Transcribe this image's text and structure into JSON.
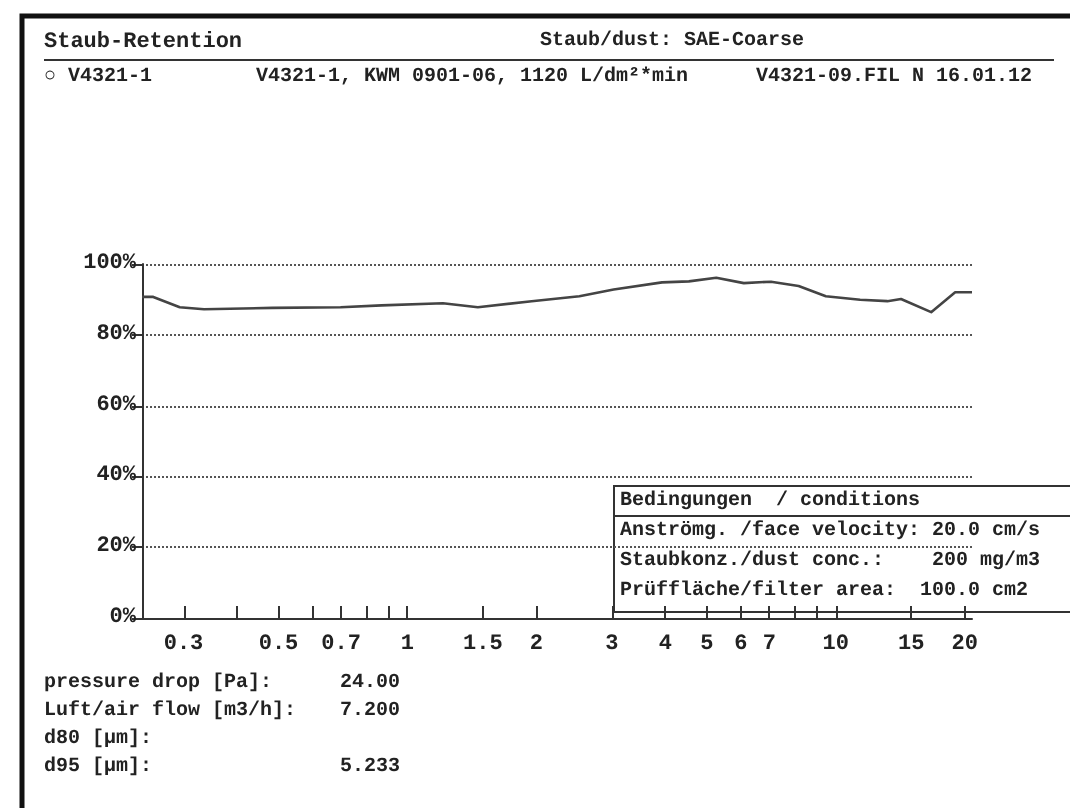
{
  "chart_data": {
    "type": "line",
    "title": "Staub-Retention",
    "annotations": [
      "Staub/dust: SAE-Coarse",
      "○ V4321-1",
      "V4321-1, KWM 0901-06, 1120 L/dm²*min",
      "V4321-09.FIL N 16.01.12",
      "Bedingungen  / conditions",
      "Anströmg. /face velocity: 20.0 cm/s",
      "Staubkonz./dust conc.:    200 mg/m3",
      "Prüffläche/filter area:  100.0 cm2",
      "pressure drop [Pa]:",
      "24.00",
      "Luft/air flow [m3/h]:",
      "7.200",
      "d80 [µm]:",
      "d95 [µm]:",
      "5.233"
    ],
    "x": [
      0.24,
      0.255,
      0.294,
      0.335,
      0.484,
      0.698,
      0.87,
      1.21,
      1.46,
      1.95,
      2.52,
      3.03,
      3.93,
      4.54,
      5.26,
      6.1,
      7.06,
      8.19,
      9.48,
      11.4,
      13.2,
      14.2,
      16.7,
      19.0,
      20.8
    ],
    "series": [
      {
        "color": "#444444",
        "values": [
          90.7,
          90.7,
          87.8,
          87.2,
          87.6,
          87.8,
          88.3,
          88.9,
          87.8,
          89.5,
          90.9,
          92.8,
          94.8,
          95.1,
          96.1,
          94.6,
          95.0,
          93.8,
          90.9,
          89.9,
          89.5,
          90.1,
          86.4,
          92.0,
          92.0
        ]
      }
    ],
    "log": "x",
    "xlim": [
      0.24,
      20.8
    ],
    "xticks": [
      {
        "value": 0.3,
        "label": "0.3"
      },
      {
        "value": 0.4,
        "label": null
      },
      {
        "value": 0.5,
        "label": "0.5"
      },
      {
        "value": 0.6,
        "label": null
      },
      {
        "value": 0.7,
        "label": "0.7"
      },
      {
        "value": 0.8,
        "label": null
      },
      {
        "value": 0.9,
        "label": null
      },
      {
        "value": 1,
        "label": "1"
      },
      {
        "value": 1.5,
        "label": "1.5"
      },
      {
        "value": 2,
        "label": "2"
      },
      {
        "value": 3,
        "label": "3"
      },
      {
        "value": 4,
        "label": "4"
      },
      {
        "value": 5,
        "label": "5"
      },
      {
        "value": 6,
        "label": "6"
      },
      {
        "value": 7,
        "label": "7"
      },
      {
        "value": 8,
        "label": null
      },
      {
        "value": 9,
        "label": null
      },
      {
        "value": 10,
        "label": "10"
      },
      {
        "value": 15,
        "label": "15"
      },
      {
        "value": 20,
        "label": "20"
      }
    ],
    "ylim": [
      0,
      100
    ],
    "yticks": [
      {
        "value": 0,
        "label": "0%"
      },
      {
        "value": 20,
        "label": "20%"
      },
      {
        "value": 40,
        "label": "40%"
      },
      {
        "value": 60,
        "label": "60%"
      },
      {
        "value": 80,
        "label": "80%"
      },
      {
        "value": 100,
        "label": "100%"
      }
    ],
    "grid": "y",
    "marker": "none",
    "line_style": "solid"
  }
}
